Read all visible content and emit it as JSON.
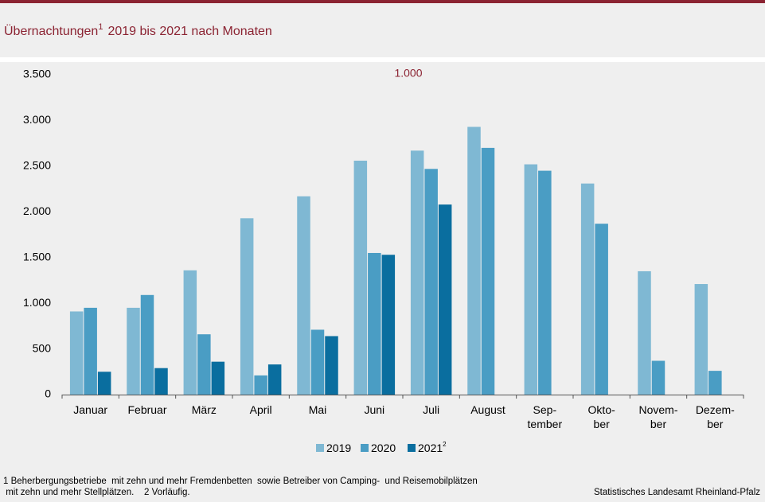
{
  "chart_data": {
    "type": "bar",
    "title": "Übernachtungen",
    "title_note": "1",
    "title_rest": "2019 bis 2021 nach Monaten",
    "unit_label": "1.000",
    "categories": [
      "Januar",
      "Februar",
      "März",
      "April",
      "Mai",
      "Juni",
      "Juli",
      "August",
      "Sep-\ntember",
      "Okto-\nber",
      "Novem-\nber",
      "Dezem-\nber"
    ],
    "series": [
      {
        "name": "2019",
        "color": "#7fb8d3",
        "values": [
          910,
          950,
          1360,
          1930,
          2170,
          2560,
          2670,
          2930,
          2520,
          2310,
          1350,
          1210
        ]
      },
      {
        "name": "2020",
        "color": "#4a9dc4",
        "values": [
          950,
          1090,
          660,
          210,
          710,
          1550,
          2470,
          2700,
          2450,
          1870,
          370,
          260
        ]
      },
      {
        "name": "2021",
        "note": "2",
        "color": "#0a6e9f",
        "values": [
          250,
          290,
          360,
          330,
          640,
          1530,
          2080,
          null,
          null,
          null,
          null,
          null
        ]
      }
    ],
    "ylim": [
      0,
      3500
    ],
    "yticks": [
      0,
      500,
      {
        "value": 1000,
        "label": "1.000"
      },
      {
        "value": 1500,
        "label": "1.500"
      },
      {
        "value": 2000,
        "label": "2.000"
      },
      {
        "value": 2500,
        "label": "2.500"
      },
      {
        "value": 3000,
        "label": "3.000"
      },
      {
        "value": 3500,
        "label": "3.500"
      }
    ],
    "grid": false,
    "legend": "bottom",
    "footnotes": [
      "1 Beherbergungsbetriebe  mit zehn und mehr Fremdenbetten  sowie Betreiber von Camping-  und Reisemobilplätzen",
      " mit zehn und mehr Stellplätzen.    2 Vorläufig."
    ],
    "source": "Statistisches Landesamt Rheinland-Pfalz"
  }
}
